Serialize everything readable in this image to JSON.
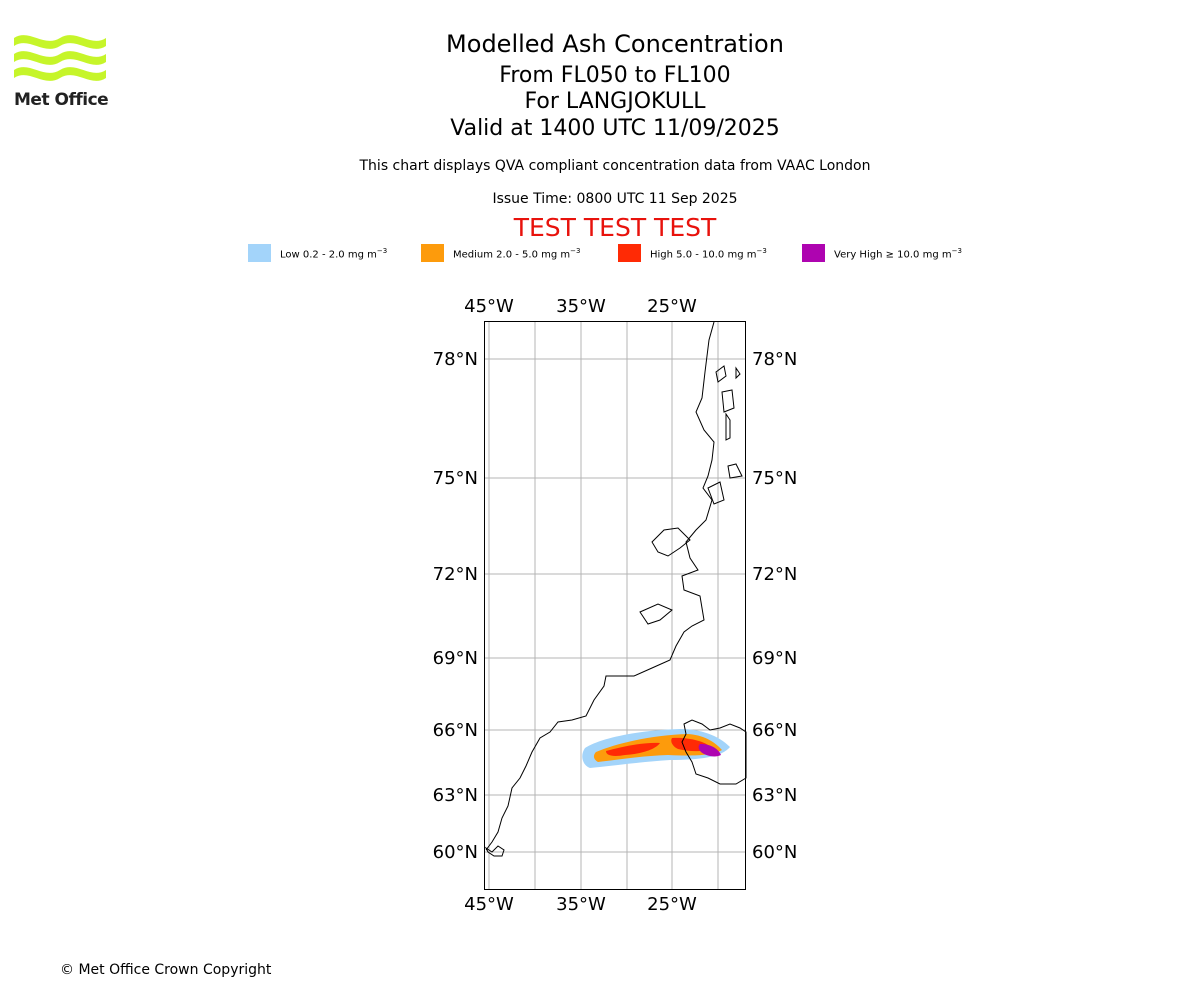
{
  "brand": {
    "logo_text": "Met Office"
  },
  "header": {
    "title": "Modelled Ash Concentration",
    "levels": "From FL050 to FL100",
    "volcano": "For LANGJOKULL",
    "valid_time": "Valid at 1400 UTC 11/09/2025",
    "compliance_note": "This chart displays QVA compliant concentration data from VAAC London",
    "issue_time": "Issue Time: 0800 UTC 11 Sep 2025",
    "test_banner": "TEST TEST TEST"
  },
  "legend": [
    {
      "name": "Low",
      "label": "Low 0.2 - 2.0 mg m",
      "sup": "−3",
      "color": "#a3d4fa"
    },
    {
      "name": "Medium",
      "label": "Medium 2.0 - 5.0 mg m",
      "sup": "−3",
      "color": "#fd9b0c"
    },
    {
      "name": "High",
      "label": "High 5.0 - 10.0 mg m",
      "sup": "−3",
      "color": "#ff2a05"
    },
    {
      "name": "Very High",
      "label": "Very High  ≥  10.0 mg m",
      "sup": "−3",
      "color": "#ae04b0"
    }
  ],
  "map": {
    "lon_ticks": [
      "45°W",
      "35°W",
      "25°W"
    ],
    "lat_ticks": [
      "78°N",
      "75°N",
      "72°N",
      "69°N",
      "66°N",
      "63°N",
      "60°N"
    ],
    "grid": true,
    "coastline_color": "#000000",
    "grid_color": "#b4b4b4"
  },
  "footer": {
    "copyright": "© Met Office Crown Copyright"
  }
}
